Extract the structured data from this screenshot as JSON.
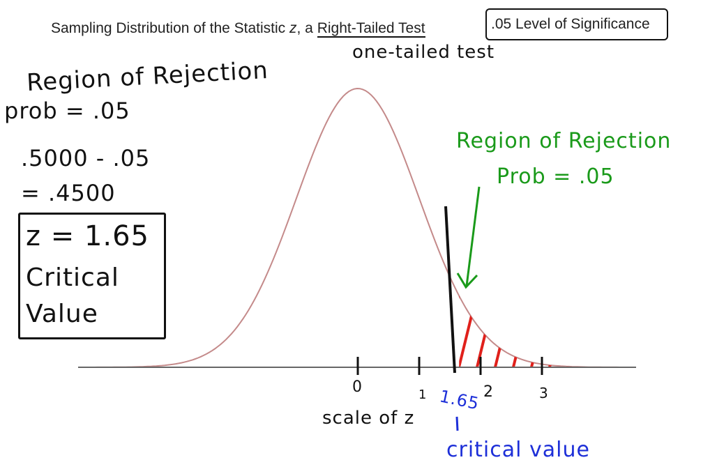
{
  "title": {
    "prefix": "Sampling Distribution of the Statistic ",
    "stat": "z",
    "comma": ", a ",
    "test": "Right-Tailed Test",
    "level": ".05 Level of Significance"
  },
  "annotations": {
    "one_tailed": "one-tailed test",
    "region_left": "Region of Rejection",
    "prob_left": "prob = .05",
    "calc1": ".5000 - .05",
    "calc2": "= .4500",
    "z_value": "z = 1.65",
    "critical1": "Critical",
    "critical2": "Value",
    "region_right": "Region of Rejection",
    "prob_right": "Prob = .05",
    "scale": "scale of z",
    "crit_label": "critical value",
    "crit_tick": "1.65"
  },
  "axis": {
    "ticks": [
      "0",
      "1",
      "2",
      "3"
    ]
  },
  "colors": {
    "curve": "#c48a8a",
    "shade": "#e0201b",
    "green": "#1a9a1a",
    "blue": "#1d2fd8",
    "ink": "#111111"
  }
}
